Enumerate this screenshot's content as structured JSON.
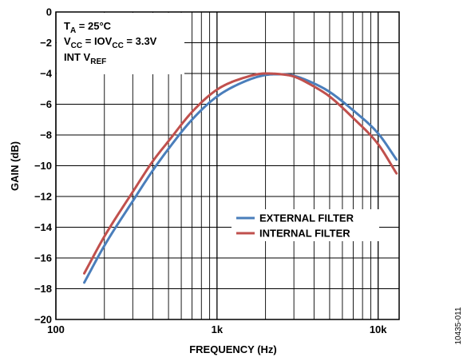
{
  "chart_data": {
    "type": "line",
    "xlabel": "FREQUENCY (Hz)",
    "ylabel": "GAIN (dB)",
    "xscale": "log",
    "xlim": [
      100,
      13500
    ],
    "ylim": [
      -20,
      0
    ],
    "grid": true,
    "x_ticks": [
      {
        "value": 100,
        "label": "100"
      },
      {
        "value": 1000,
        "label": "1k"
      },
      {
        "value": 10000,
        "label": "10k"
      }
    ],
    "y_ticks": [
      {
        "value": 0,
        "label": "0"
      },
      {
        "value": -2,
        "label": "−2"
      },
      {
        "value": -4,
        "label": "−4"
      },
      {
        "value": -6,
        "label": "−6"
      },
      {
        "value": -8,
        "label": "−8"
      },
      {
        "value": -10,
        "label": "−10"
      },
      {
        "value": -12,
        "label": "−12"
      },
      {
        "value": -14,
        "label": "−14"
      },
      {
        "value": -16,
        "label": "−16"
      },
      {
        "value": -18,
        "label": "−18"
      },
      {
        "value": -20,
        "label": "−20"
      }
    ],
    "annotations": [
      {
        "main": "T",
        "sub": "A",
        "rest": " = 25°C"
      },
      {
        "main": "V",
        "sub": "CC",
        "mid": " = IOV",
        "sub2": "CC",
        "rest": " = 3.3V"
      },
      {
        "main": "INT V",
        "sub": "REF",
        "rest": ""
      }
    ],
    "legend_position": "center-right",
    "series": [
      {
        "name": "EXTERNAL FILTER",
        "color": "#4a7ebb",
        "x": [
          150,
          200,
          300,
          400,
          500,
          700,
          1000,
          1500,
          2000,
          2500,
          3000,
          4000,
          5000,
          7000,
          10000,
          13000
        ],
        "y": [
          -17.6,
          -15.2,
          -12.3,
          -10.3,
          -8.9,
          -7.0,
          -5.5,
          -4.5,
          -4.1,
          -4.05,
          -4.15,
          -4.65,
          -5.2,
          -6.4,
          -7.9,
          -9.6
        ]
      },
      {
        "name": "INTERNAL FILTER",
        "color": "#c0504d",
        "x": [
          150,
          200,
          300,
          400,
          500,
          700,
          1000,
          1500,
          2000,
          2500,
          3000,
          4000,
          5000,
          7000,
          10000,
          13000
        ],
        "y": [
          -17.0,
          -14.6,
          -11.7,
          -9.7,
          -8.4,
          -6.5,
          -5.05,
          -4.25,
          -4.0,
          -4.05,
          -4.2,
          -4.85,
          -5.5,
          -6.9,
          -8.6,
          -10.5
        ]
      }
    ]
  },
  "figure_id": "10435-011"
}
